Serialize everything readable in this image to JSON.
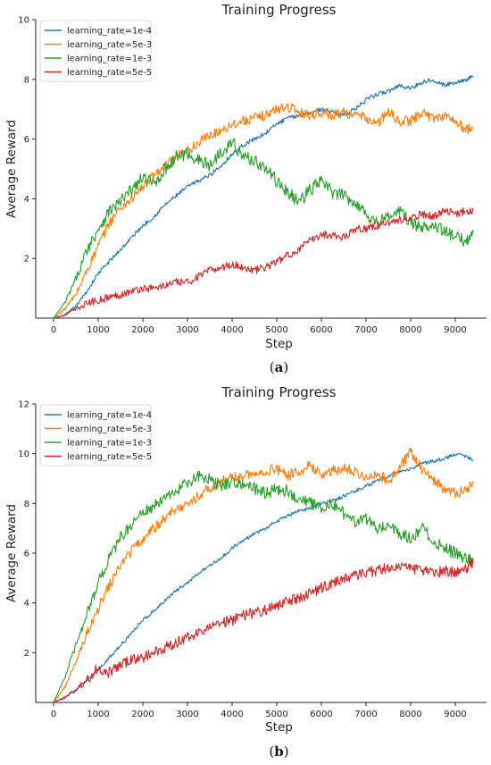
{
  "chart_data": [
    {
      "type": "line",
      "panel_label": "a",
      "title": "Training Progress",
      "xlabel": "Step",
      "ylabel": "Average Reward",
      "xlim": [
        -400,
        9700
      ],
      "ylim": [
        0,
        10
      ],
      "x_ticks": [
        0,
        1000,
        2000,
        3000,
        4000,
        5000,
        6000,
        7000,
        8000,
        9000
      ],
      "y_ticks": [
        2,
        4,
        6,
        8,
        10
      ],
      "grid": false,
      "legend_position": "top-left",
      "x": [
        0,
        250,
        500,
        750,
        1000,
        1250,
        1500,
        1750,
        2000,
        2250,
        2500,
        2750,
        3000,
        3250,
        3500,
        3750,
        4000,
        4250,
        4500,
        4750,
        5000,
        5250,
        5500,
        5750,
        6000,
        6250,
        6500,
        6750,
        7000,
        7250,
        7500,
        7750,
        8000,
        8250,
        8500,
        8750,
        9000,
        9250,
        9400
      ],
      "series": [
        {
          "name": "learning_rate=1e-4",
          "color": "#1f77b4",
          "values": [
            0.0,
            0.1,
            0.4,
            0.9,
            1.5,
            1.9,
            2.3,
            2.7,
            3.1,
            3.4,
            3.8,
            4.1,
            4.4,
            4.6,
            4.8,
            5.1,
            5.5,
            5.8,
            6.0,
            6.2,
            6.5,
            6.7,
            6.8,
            6.9,
            7.0,
            6.9,
            6.8,
            7.0,
            7.3,
            7.5,
            7.6,
            7.8,
            7.7,
            7.9,
            8.0,
            7.8,
            7.9,
            8.0,
            8.1
          ]
        },
        {
          "name": "learning_rate=5e-3",
          "color": "#ff7f0e",
          "values": [
            0.0,
            0.3,
            0.8,
            1.6,
            2.4,
            3.2,
            3.7,
            4.0,
            4.4,
            4.8,
            5.1,
            5.4,
            5.6,
            5.9,
            6.1,
            6.3,
            6.5,
            6.6,
            6.7,
            6.8,
            7.0,
            7.1,
            6.9,
            6.8,
            6.9,
            6.8,
            6.9,
            6.8,
            6.7,
            6.5,
            6.9,
            6.6,
            6.6,
            6.9,
            6.7,
            6.8,
            6.6,
            6.3,
            6.4
          ]
        },
        {
          "name": "learning_rate=1e-3",
          "color": "#2ca02c",
          "values": [
            0.0,
            0.5,
            1.3,
            2.3,
            3.0,
            3.6,
            3.9,
            4.3,
            4.7,
            4.5,
            5.0,
            5.4,
            5.5,
            5.3,
            5.1,
            5.6,
            5.9,
            5.4,
            5.3,
            5.0,
            4.6,
            4.2,
            3.9,
            4.3,
            4.6,
            4.2,
            4.1,
            3.9,
            3.5,
            3.2,
            3.4,
            3.6,
            3.2,
            3.0,
            3.2,
            2.9,
            2.7,
            2.6,
            2.9
          ]
        },
        {
          "name": "learning_rate=5e-5",
          "color": "#d62728",
          "values": [
            0.0,
            0.1,
            0.3,
            0.5,
            0.6,
            0.7,
            0.8,
            0.9,
            1.0,
            1.0,
            1.1,
            1.2,
            1.2,
            1.4,
            1.6,
            1.7,
            1.8,
            1.7,
            1.6,
            1.7,
            1.9,
            2.1,
            2.3,
            2.6,
            2.8,
            2.8,
            2.7,
            3.0,
            3.0,
            3.1,
            3.2,
            3.3,
            3.3,
            3.5,
            3.4,
            3.6,
            3.5,
            3.6,
            3.6
          ]
        }
      ]
    },
    {
      "type": "line",
      "panel_label": "b",
      "title": "Training Progress",
      "xlabel": "Step",
      "ylabel": "Average Reward",
      "xlim": [
        -400,
        9700
      ],
      "ylim": [
        0,
        12
      ],
      "x_ticks": [
        0,
        1000,
        2000,
        3000,
        4000,
        5000,
        6000,
        7000,
        8000,
        9000
      ],
      "y_ticks": [
        2,
        4,
        6,
        8,
        10,
        12
      ],
      "grid": false,
      "legend_position": "top-left",
      "x": [
        0,
        250,
        500,
        750,
        1000,
        1250,
        1500,
        1750,
        2000,
        2250,
        2500,
        2750,
        3000,
        3250,
        3500,
        3750,
        4000,
        4250,
        4500,
        4750,
        5000,
        5250,
        5500,
        5750,
        6000,
        6250,
        6500,
        6750,
        7000,
        7250,
        7500,
        7750,
        8000,
        8250,
        8500,
        8750,
        9000,
        9250,
        9400
      ],
      "series": [
        {
          "name": "learning_rate=1e-4",
          "color": "#1f77b4",
          "values": [
            0.0,
            0.2,
            0.5,
            0.9,
            1.3,
            1.8,
            2.3,
            2.8,
            3.3,
            3.7,
            4.1,
            4.5,
            4.8,
            5.2,
            5.5,
            5.8,
            6.2,
            6.5,
            6.8,
            7.0,
            7.3,
            7.5,
            7.7,
            7.8,
            8.0,
            8.1,
            8.3,
            8.5,
            8.7,
            8.9,
            9.1,
            9.3,
            9.4,
            9.6,
            9.7,
            9.8,
            10.0,
            9.9,
            9.7
          ]
        },
        {
          "name": "learning_rate=5e-3",
          "color": "#ff7f0e",
          "values": [
            0.0,
            0.6,
            1.6,
            2.8,
            3.8,
            4.7,
            5.5,
            6.1,
            6.6,
            7.0,
            7.4,
            7.8,
            8.0,
            8.3,
            8.6,
            8.9,
            9.0,
            9.1,
            9.2,
            9.3,
            9.4,
            9.1,
            9.3,
            9.5,
            9.2,
            9.3,
            9.4,
            9.3,
            9.1,
            9.2,
            8.9,
            9.4,
            10.1,
            9.4,
            8.9,
            8.6,
            8.4,
            8.5,
            8.8
          ]
        },
        {
          "name": "learning_rate=1e-3",
          "color": "#2ca02c",
          "values": [
            0.0,
            1.0,
            2.3,
            3.6,
            4.8,
            5.8,
            6.6,
            7.2,
            7.6,
            7.9,
            8.2,
            8.5,
            8.8,
            9.1,
            9.0,
            8.7,
            8.9,
            8.8,
            8.6,
            8.4,
            8.6,
            8.5,
            8.2,
            8.0,
            7.8,
            8.0,
            7.6,
            7.2,
            7.4,
            7.0,
            7.2,
            6.8,
            6.6,
            7.0,
            6.5,
            6.2,
            6.0,
            5.8,
            5.6
          ]
        },
        {
          "name": "learning_rate=5e-5",
          "color": "#d62728",
          "values": [
            0.0,
            0.2,
            0.5,
            0.9,
            1.4,
            1.2,
            1.5,
            1.7,
            1.8,
            2.0,
            2.2,
            2.4,
            2.6,
            2.8,
            3.0,
            3.2,
            3.3,
            3.5,
            3.6,
            3.7,
            3.9,
            4.1,
            4.2,
            4.4,
            4.6,
            4.8,
            5.0,
            5.1,
            5.2,
            5.3,
            5.4,
            5.5,
            5.4,
            5.3,
            5.2,
            5.3,
            5.2,
            5.4,
            5.6
          ]
        }
      ]
    }
  ]
}
